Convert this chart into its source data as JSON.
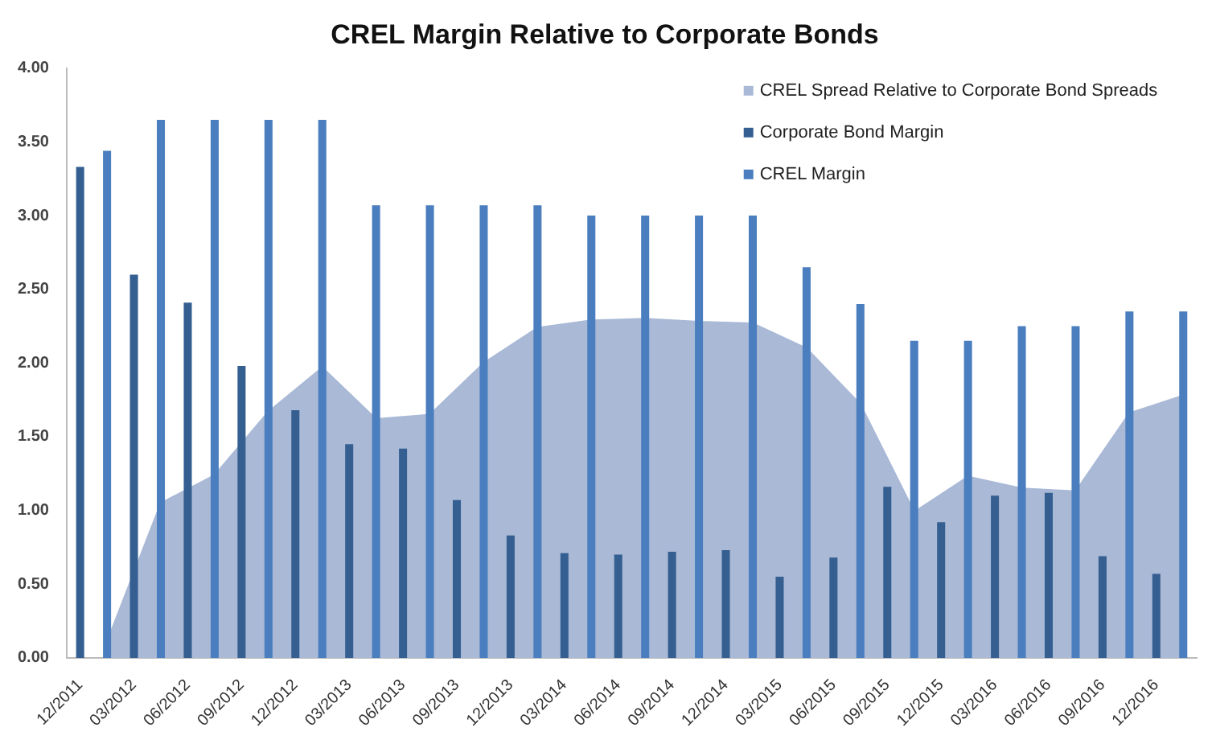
{
  "chart_data": {
    "type": "bar",
    "title": "CREL Margin Relative to Corporate Bonds",
    "categories": [
      "12/2011",
      null,
      "03/2012",
      null,
      "06/2012",
      null,
      "09/2012",
      null,
      "12/2012",
      null,
      "03/2013",
      null,
      "06/2013",
      null,
      "09/2013",
      null,
      "12/2013",
      null,
      "03/2014",
      null,
      "06/2014",
      null,
      "09/2014",
      null,
      "12/2014",
      null,
      "03/2015",
      null,
      "06/2015",
      null,
      "09/2015",
      null,
      "12/2015",
      null,
      "03/2016",
      null,
      "06/2016",
      null,
      "09/2016",
      null,
      "12/2016",
      null
    ],
    "series": [
      {
        "name": "CREL Spread Relative to Corporate Bond Spreads",
        "type": "area",
        "color": "#a9b9d6",
        "values": [
          null,
          0.11,
          null,
          1.05,
          null,
          1.24,
          null,
          1.67,
          null,
          1.97,
          null,
          1.62,
          null,
          1.65,
          null,
          2.0,
          null,
          2.24,
          null,
          2.29,
          null,
          2.3,
          null,
          2.28,
          null,
          2.27,
          null,
          2.1,
          null,
          1.72,
          null,
          0.99,
          null,
          1.23,
          null,
          1.15,
          null,
          1.13,
          null,
          1.66,
          null,
          1.78
        ]
      },
      {
        "name": "Corporate Bond Margin",
        "color": "#355f91",
        "values": [
          3.33,
          null,
          2.6,
          null,
          2.41,
          null,
          1.98,
          null,
          1.68,
          null,
          1.45,
          null,
          1.42,
          null,
          1.07,
          null,
          0.83,
          null,
          0.71,
          null,
          0.7,
          null,
          0.72,
          null,
          0.73,
          null,
          0.55,
          null,
          0.68,
          null,
          1.16,
          null,
          0.92,
          null,
          1.1,
          null,
          1.12,
          null,
          0.69,
          null,
          0.57,
          null
        ]
      },
      {
        "name": "CREL Margin",
        "color": "#4a7ebf",
        "values": [
          null,
          3.44,
          null,
          3.65,
          null,
          3.65,
          null,
          3.65,
          null,
          3.65,
          null,
          3.07,
          null,
          3.07,
          null,
          3.07,
          null,
          3.07,
          null,
          3.0,
          null,
          3.0,
          null,
          3.0,
          null,
          3.0,
          null,
          2.65,
          null,
          2.4,
          null,
          2.15,
          null,
          2.15,
          null,
          2.25,
          null,
          2.25,
          null,
          2.35,
          null,
          2.35
        ]
      }
    ],
    "ylim": [
      0,
      4
    ],
    "yticks": [
      {
        "value": 0,
        "label": "0.00"
      },
      {
        "value": 0.5,
        "label": "0.50"
      },
      {
        "value": 1,
        "label": "1.00"
      },
      {
        "value": 1.5,
        "label": "1.50"
      },
      {
        "value": 2,
        "label": "2.00"
      },
      {
        "value": 2.5,
        "label": "2.50"
      },
      {
        "value": 3,
        "label": "3.00"
      },
      {
        "value": 3.5,
        "label": "3.50"
      },
      {
        "value": 4,
        "label": "4.00"
      }
    ],
    "grid": false,
    "legend": "top right"
  }
}
